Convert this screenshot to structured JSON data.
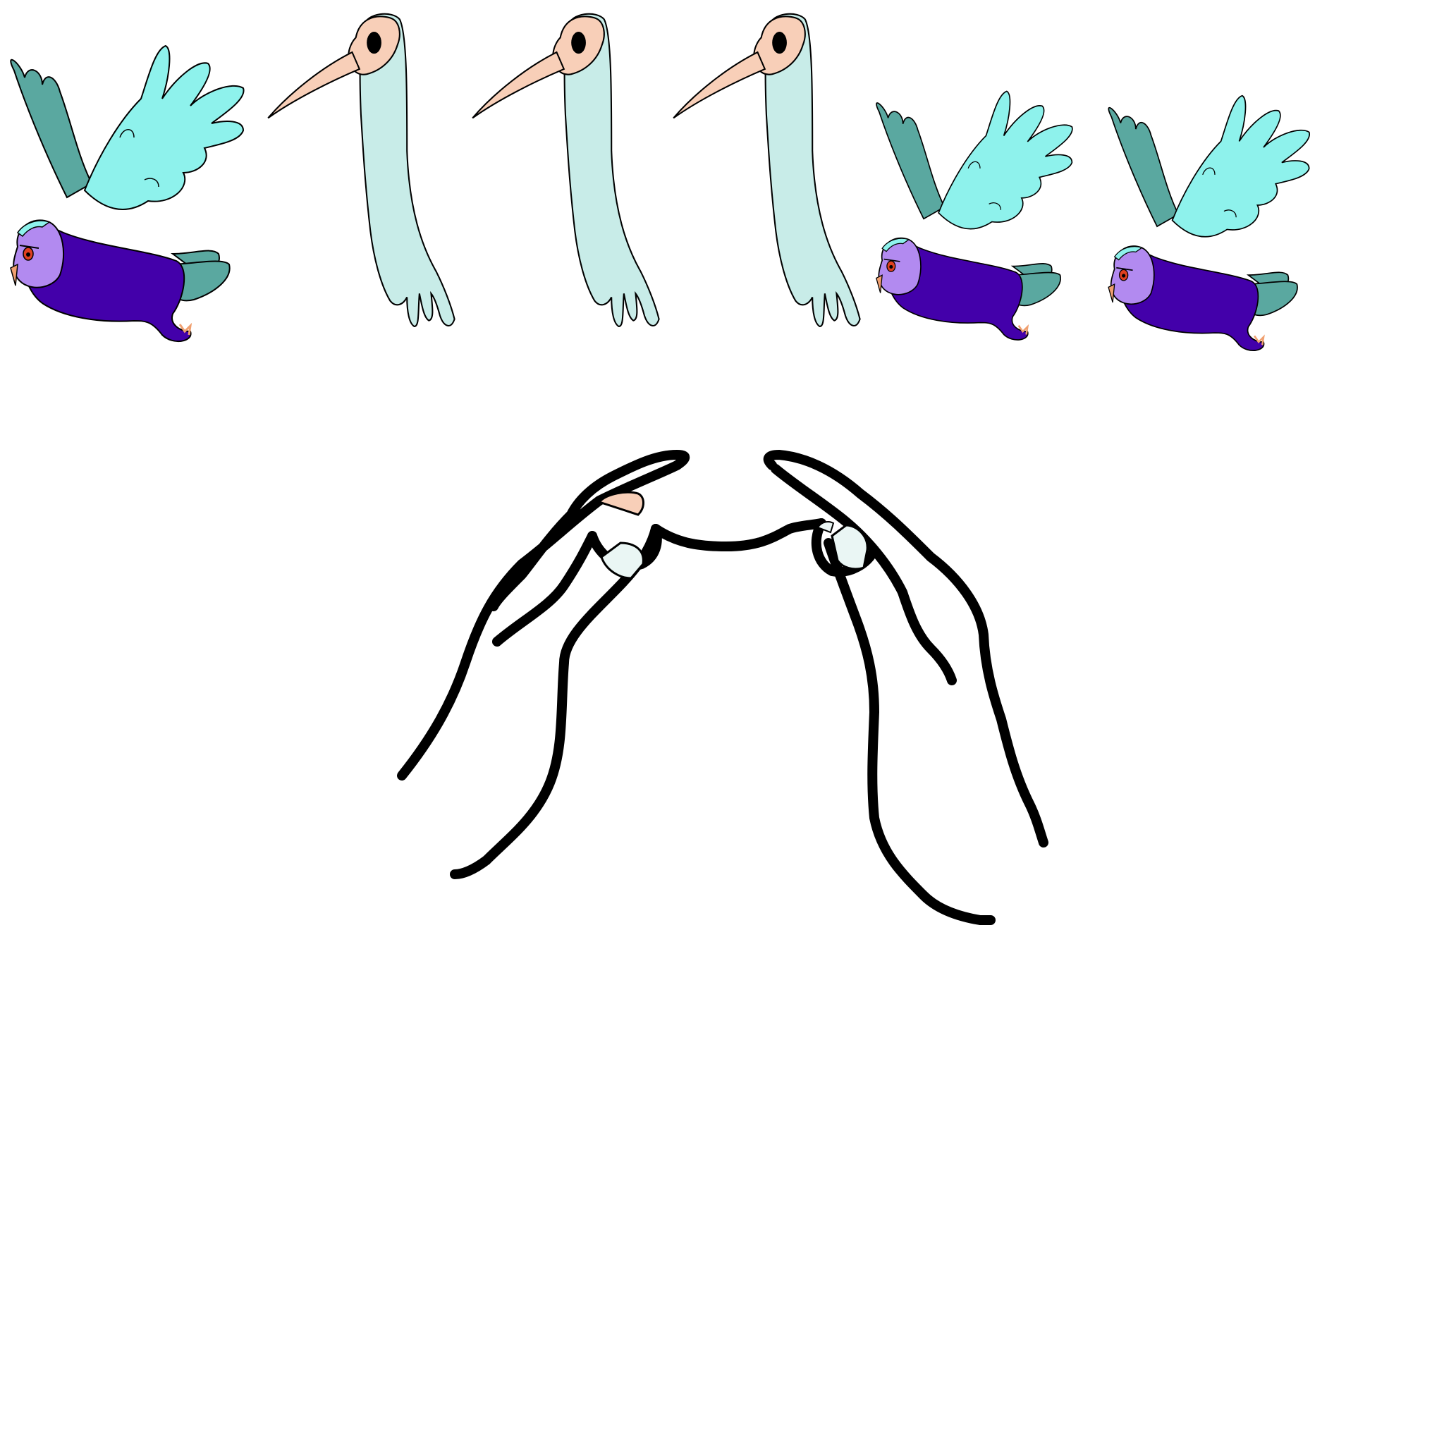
{
  "scene": {
    "background": "#ffffff",
    "sprite_row": [
      {
        "kind": "owl",
        "icon": "flying-owl-icon"
      },
      {
        "kind": "ghost-bird",
        "icon": "ghost-bird-icon"
      },
      {
        "kind": "ghost-bird",
        "icon": "ghost-bird-icon"
      },
      {
        "kind": "ghost-bird",
        "icon": "ghost-bird-icon"
      },
      {
        "kind": "owl",
        "icon": "flying-owl-icon"
      },
      {
        "kind": "owl",
        "icon": "flying-owl-icon"
      }
    ],
    "player": {
      "icon": "hands-holding-string-icon"
    }
  },
  "palette": {
    "owl_wing_light": "#8ef2ec",
    "owl_wing_dark": "#5aa8a0",
    "owl_body": "#4300aa",
    "owl_face": "#b28af0",
    "owl_beak": "#f0a070",
    "owl_eye": "#e04020",
    "ghost_body": "#c8ece8",
    "ghost_skull": "#f8cfb8",
    "outline": "#000000"
  }
}
